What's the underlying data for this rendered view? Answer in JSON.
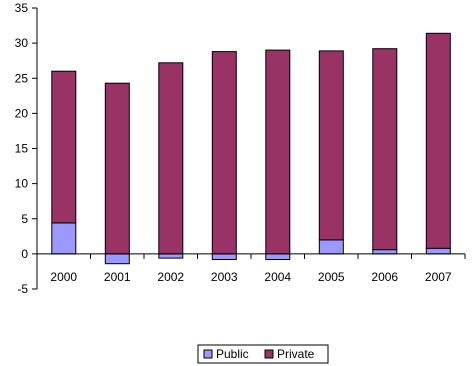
{
  "chart_data": {
    "type": "bar",
    "stacked": true,
    "categories": [
      "2000",
      "2001",
      "2002",
      "2003",
      "2004",
      "2005",
      "2006",
      "2007"
    ],
    "series": [
      {
        "name": "Public",
        "color": "#9999ff",
        "values": [
          4.4,
          -1.4,
          -0.6,
          -0.8,
          -0.8,
          2.0,
          0.6,
          0.8
        ]
      },
      {
        "name": "Private",
        "color": "#993366",
        "values": [
          21.6,
          24.3,
          27.2,
          28.8,
          29.0,
          26.9,
          28.6,
          30.6
        ]
      }
    ],
    "ylim": [
      -5,
      35
    ],
    "yticks": [
      -5,
      0,
      5,
      10,
      15,
      20,
      25,
      30,
      35
    ],
    "grid": false,
    "legend": "bottom",
    "title": "",
    "xlabel": "",
    "ylabel": ""
  }
}
